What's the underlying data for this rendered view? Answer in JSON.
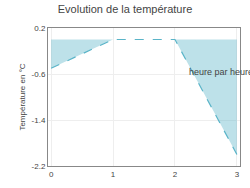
{
  "chart_data": {
    "type": "area",
    "title": "Evolution de la température",
    "ylabel": "Température en °C",
    "x": [
      0,
      1,
      2,
      3
    ],
    "values": [
      -0.5,
      0.0,
      0.0,
      -2.0
    ],
    "color": "#5ab4c8",
    "line_style": "dashed",
    "xlim": [
      -0.05,
      3.05
    ],
    "ylim": [
      -2.2,
      0.2
    ],
    "xticks": [
      0,
      1,
      2,
      3
    ],
    "yticks": [
      0.2,
      -0.6,
      -1.4,
      -2.2
    ],
    "grid": true,
    "annotations": [
      {
        "text": "heure par heure",
        "x": 2.2,
        "y": -0.45
      }
    ]
  }
}
